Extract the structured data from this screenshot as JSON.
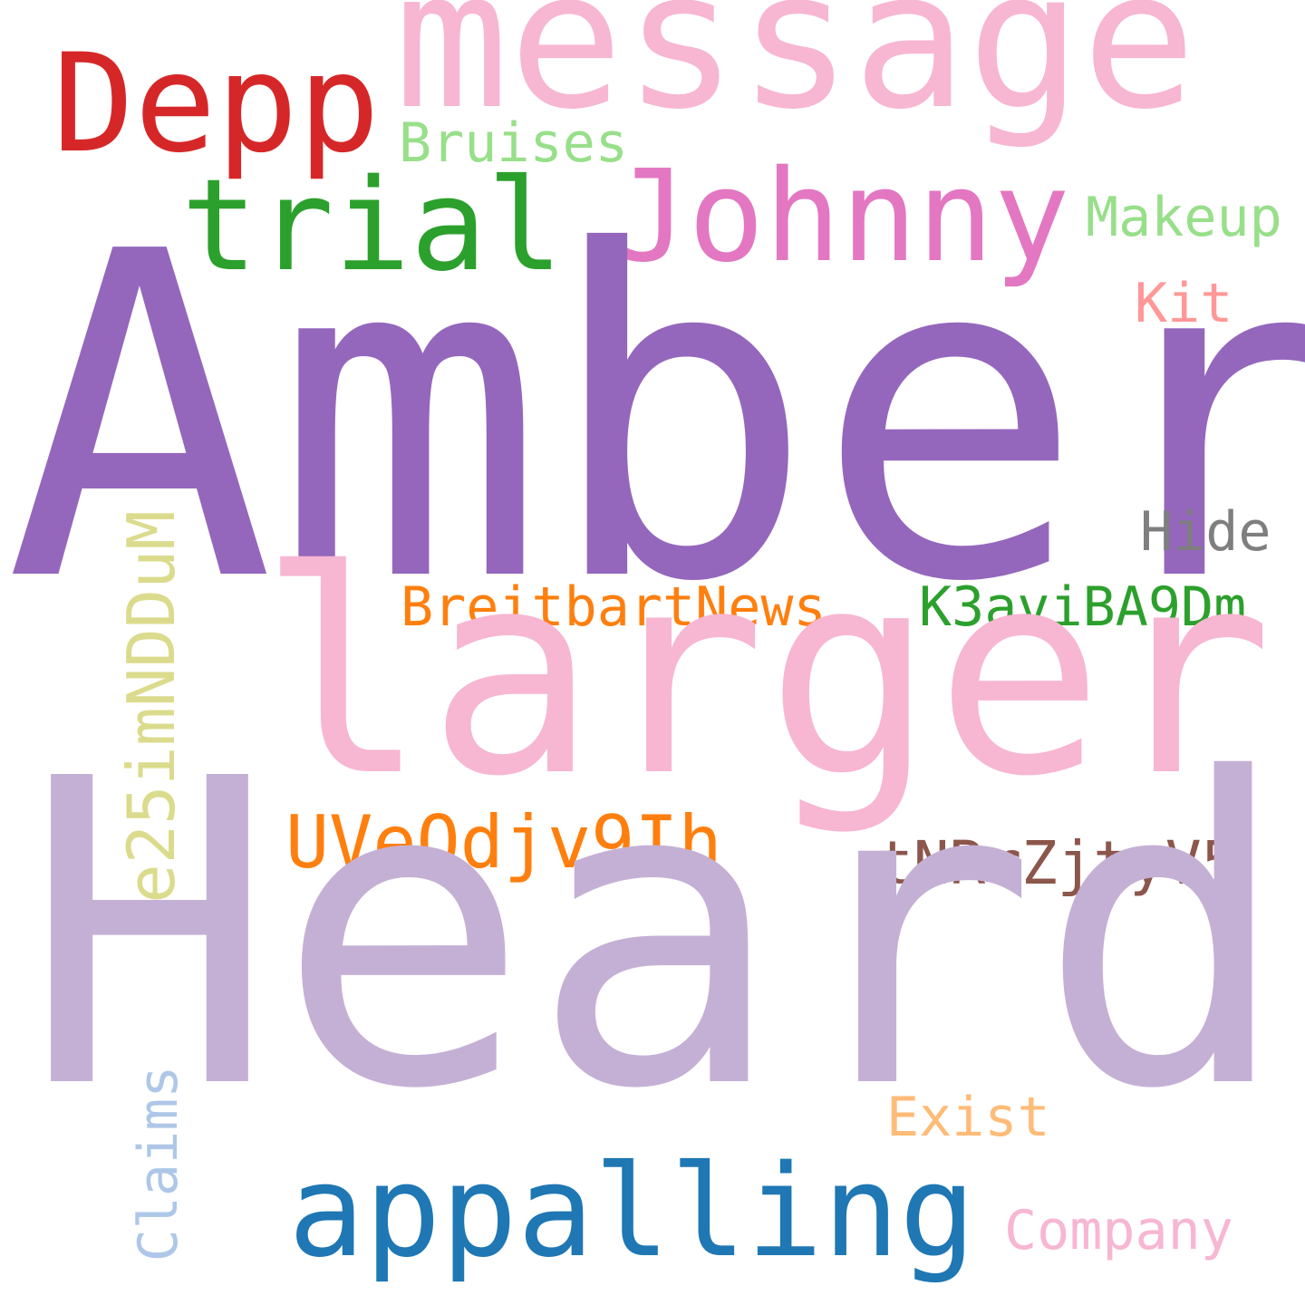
{
  "words": {
    "amber": {
      "text": "Amber",
      "color": "#9467bd"
    },
    "heard": {
      "text": "Heard",
      "color": "#c5b0d5"
    },
    "larger": {
      "text": "larger",
      "color": "#f7b6d2"
    },
    "message": {
      "text": "message",
      "color": "#f7b6d2"
    },
    "depp": {
      "text": "Depp",
      "color": "#d62728"
    },
    "johnny": {
      "text": "Johnny",
      "color": "#e377c2"
    },
    "trial": {
      "text": "trial",
      "color": "#2ca02c"
    },
    "appalling": {
      "text": "appalling",
      "color": "#1f77b4"
    },
    "bruises": {
      "text": "Bruises",
      "color": "#98df8a"
    },
    "makeup": {
      "text": "Makeup",
      "color": "#98df8a"
    },
    "kit": {
      "text": "Kit",
      "color": "#ff9896"
    },
    "hide": {
      "text": "Hide",
      "color": "#7f7f7f"
    },
    "breitbartnews": {
      "text": "BreitbartNews",
      "color": "#ff7f0e"
    },
    "k3avi": {
      "text": "K3aviBA9Dm",
      "color": "#2ca02c"
    },
    "uveodjv": {
      "text": "UVeOdjv9Ih",
      "color": "#ff7f0e"
    },
    "tnrrz": {
      "text": "tNRrZjtyV5",
      "color": "#8c564b"
    },
    "e25im": {
      "text": "e25imNDDuM",
      "color": "#dbdb8d"
    },
    "exist": {
      "text": "Exist",
      "color": "#ffbb78"
    },
    "company": {
      "text": "Company",
      "color": "#f7b6d2"
    },
    "claims": {
      "text": "Claims",
      "color": "#aec7e8"
    }
  }
}
